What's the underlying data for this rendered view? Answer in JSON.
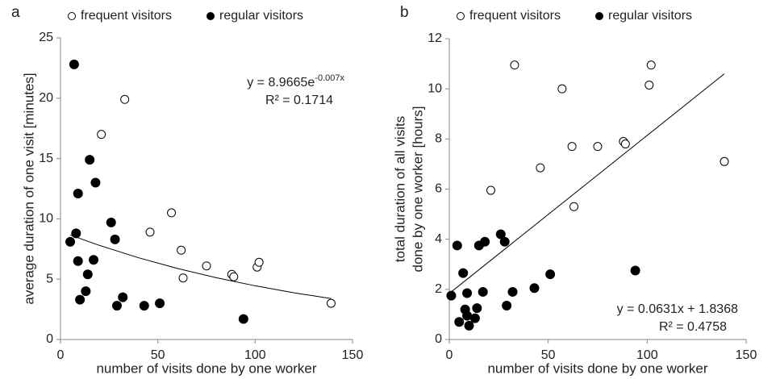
{
  "chart_data": [
    {
      "type": "scatter",
      "panel": "a",
      "xlabel": "number of visits done by one worker",
      "ylabel": "average duration of one visit [minutes]",
      "xlim": [
        0,
        150
      ],
      "xticks": [
        0,
        50,
        100,
        150
      ],
      "ylim": [
        0,
        25
      ],
      "yticks": [
        0,
        5,
        10,
        15,
        20,
        25
      ],
      "equation": [
        "y = 8.9665e",
        "-0.007x"
      ],
      "r2": "R² = 0.1714",
      "equation_corner": "top-right",
      "series": [
        {
          "name": "frequent visitors",
          "marker": "open",
          "color": "#000",
          "x": [
            21,
            33,
            46,
            57,
            62,
            63,
            75,
            88,
            89,
            101,
            102,
            139
          ],
          "values": [
            17.0,
            19.9,
            8.9,
            10.5,
            7.4,
            5.1,
            6.1,
            5.4,
            5.2,
            6.0,
            6.4,
            3.0
          ]
        },
        {
          "name": "regular visitors",
          "marker": "filled",
          "color": "#000",
          "x": [
            7,
            5,
            8,
            9,
            9,
            10,
            13,
            14,
            15,
            17,
            18,
            26,
            28,
            29,
            32,
            43,
            51,
            94
          ],
          "values": [
            22.8,
            8.1,
            8.8,
            12.1,
            6.5,
            3.3,
            4.0,
            5.4,
            14.9,
            6.6,
            13.0,
            9.7,
            8.3,
            2.8,
            3.5,
            2.8,
            3.0,
            1.7
          ]
        }
      ],
      "trendline": {
        "x": [
          5,
          20,
          40,
          60,
          80,
          100,
          120,
          139
        ],
        "values": [
          8.66,
          7.8,
          6.78,
          5.89,
          5.12,
          4.45,
          3.87,
          3.39
        ]
      }
    },
    {
      "type": "scatter",
      "panel": "b",
      "xlabel": "number of visits done by one worker",
      "ylabel": [
        "total duration of all visits",
        "done by one worker [hours]"
      ],
      "xlim": [
        0,
        150
      ],
      "xticks": [
        0,
        50,
        100,
        150
      ],
      "ylim": [
        0,
        12
      ],
      "yticks": [
        0,
        2,
        4,
        6,
        8,
        10,
        12
      ],
      "equation": [
        "y = 0.0631x + 1.8368"
      ],
      "r2": "R² = 0.4758",
      "equation_corner": "bottom-right",
      "series": [
        {
          "name": "frequent visitors",
          "marker": "open",
          "color": "#000",
          "x": [
            21,
            33,
            46,
            57,
            62,
            63,
            75,
            88,
            89,
            101,
            102,
            139
          ],
          "values": [
            5.95,
            10.95,
            6.85,
            10.0,
            7.7,
            5.3,
            7.7,
            7.9,
            7.8,
            10.15,
            10.95,
            7.1
          ]
        },
        {
          "name": "regular visitors",
          "marker": "filled",
          "color": "#000",
          "x": [
            1,
            4,
            5,
            7,
            8,
            9,
            9,
            10,
            13,
            14,
            15,
            17,
            18,
            26,
            28,
            29,
            32,
            43,
            51,
            94
          ],
          "values": [
            1.75,
            3.75,
            0.7,
            2.65,
            1.2,
            1.85,
            0.95,
            0.55,
            0.85,
            1.25,
            3.75,
            1.9,
            3.9,
            4.2,
            3.9,
            1.35,
            1.9,
            2.05,
            2.6,
            2.75
          ]
        }
      ],
      "trendline": {
        "x": [
          1,
          139
        ],
        "values": [
          1.9,
          10.6
        ]
      }
    }
  ]
}
